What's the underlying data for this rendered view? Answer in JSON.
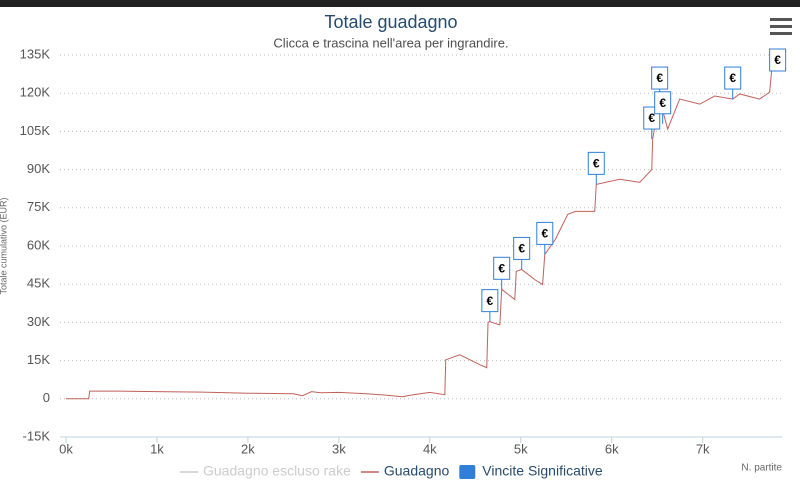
{
  "chart_data": {
    "type": "line",
    "title": "Totale guadagno",
    "subtitle": "Clicca e trascina nell'area per ingrandire.",
    "xlabel": "N. partite",
    "ylabel": "Totale cumulativo (EUR)",
    "x": [
      0,
      250,
      260,
      600,
      1000,
      1500,
      2000,
      2500,
      2600,
      2700,
      2800,
      3000,
      3300,
      3500,
      3700,
      3800,
      4000,
      4165,
      4175,
      4330,
      4550,
      4626,
      4640,
      4660,
      4770,
      4790,
      4934,
      4950,
      5010,
      5154,
      5240,
      5264,
      5380,
      5516,
      5600,
      5813,
      5830,
      6088,
      6308,
      6440,
      6450,
      6527,
      6615,
      6747,
      6967,
      7132,
      7330,
      7407,
      7626,
      7736,
      7760,
      7824
    ],
    "series": [
      {
        "name": "Guadagno escluso rake",
        "color": "#cccccc",
        "visible": false,
        "values": [
          null,
          null,
          null,
          null,
          null,
          null,
          null,
          null,
          null,
          null,
          null,
          null,
          null,
          null,
          null,
          null,
          null,
          null,
          null,
          null,
          null,
          null,
          null,
          null,
          null,
          null,
          null,
          null,
          null,
          null,
          null,
          null,
          null,
          null,
          null,
          null,
          null,
          null,
          null,
          null,
          null,
          null,
          null,
          null,
          null,
          null,
          null,
          null,
          null,
          null,
          null,
          null
        ]
      },
      {
        "name": "Guadagno",
        "color": "#c0605a",
        "visible": true,
        "values": [
          0,
          0,
          3000,
          3000,
          2800,
          2600,
          2200,
          2000,
          1200,
          2800,
          2400,
          2500,
          2000,
          1500,
          800,
          1500,
          2500,
          1600,
          15300,
          17300,
          13400,
          12200,
          30000,
          30300,
          29000,
          43000,
          39000,
          50000,
          50800,
          46800,
          44900,
          56700,
          62600,
          72400,
          73600,
          73600,
          84200,
          86200,
          85000,
          90000,
          102000,
          117700,
          105900,
          117700,
          115700,
          118900,
          117700,
          119700,
          117700,
          120400,
          129500,
          133400
        ]
      }
    ],
    "flags": {
      "name": "Vincite Significative",
      "color": "#2f7ed8",
      "text": "€",
      "x": [
        4660,
        4790,
        5010,
        5264,
        5830,
        6440,
        6527,
        6560,
        7330,
        7824
      ],
      "values": [
        30300,
        43000,
        50800,
        56700,
        84200,
        102000,
        117700,
        108000,
        117700,
        133400
      ]
    },
    "xlim": [
      0,
      7850
    ],
    "ylim": [
      -15000,
      135000
    ],
    "xticks": [
      {
        "value": 0,
        "label": "0k"
      },
      {
        "value": 1000,
        "label": "1k"
      },
      {
        "value": 2000,
        "label": "2k"
      },
      {
        "value": 3000,
        "label": "3k"
      },
      {
        "value": 4000,
        "label": "4k"
      },
      {
        "value": 5000,
        "label": "5k"
      },
      {
        "value": 6000,
        "label": "6k"
      },
      {
        "value": 7000,
        "label": "7k"
      }
    ],
    "yticks": [
      {
        "value": -15000,
        "label": "-15K"
      },
      0,
      {
        "value": 15000,
        "label": "15K"
      },
      {
        "value": 30000,
        "label": "30K"
      },
      {
        "value": 45000,
        "label": "45K"
      },
      {
        "value": 60000,
        "label": "60K"
      },
      {
        "value": 75000,
        "label": "75K"
      },
      {
        "value": 90000,
        "label": "90K"
      },
      {
        "value": 105000,
        "label": "105K"
      },
      {
        "value": 120000,
        "label": "120K"
      },
      {
        "value": 135000,
        "label": "135K"
      }
    ],
    "grid": true
  }
}
